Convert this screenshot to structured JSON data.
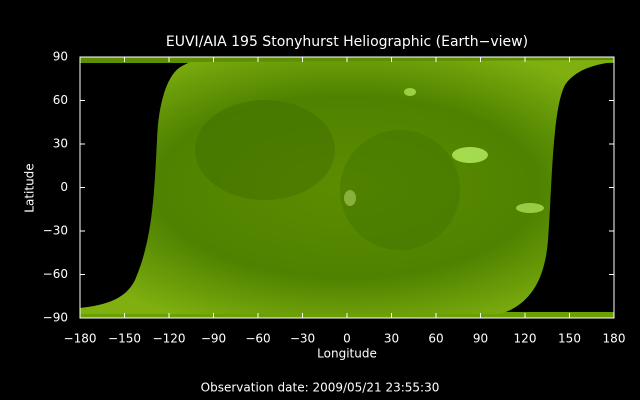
{
  "chart_data": {
    "type": "image",
    "title": "EUVI/AIA 195 Stonyhurst Heliographic (Earth−view)",
    "xlabel": "Longitude",
    "ylabel": "Latitude",
    "footer": "Observation date: 2009/05/21 23:55:30",
    "xlim": [
      -180,
      180
    ],
    "ylim": [
      -90,
      90
    ],
    "xticks": [
      {
        "value": -180,
        "label": "−180"
      },
      {
        "value": -150,
        "label": "−150"
      },
      {
        "value": -120,
        "label": "−120"
      },
      {
        "value": -90,
        "label": "−90"
      },
      {
        "value": -60,
        "label": "−60"
      },
      {
        "value": -30,
        "label": "−30"
      },
      0,
      30,
      60,
      90,
      120,
      150,
      180
    ],
    "yticks": [
      {
        "value": -90,
        "label": "−90"
      },
      {
        "value": -60,
        "label": "−60"
      },
      {
        "value": -30,
        "label": "−30"
      },
      0,
      30,
      60,
      90
    ]
  }
}
